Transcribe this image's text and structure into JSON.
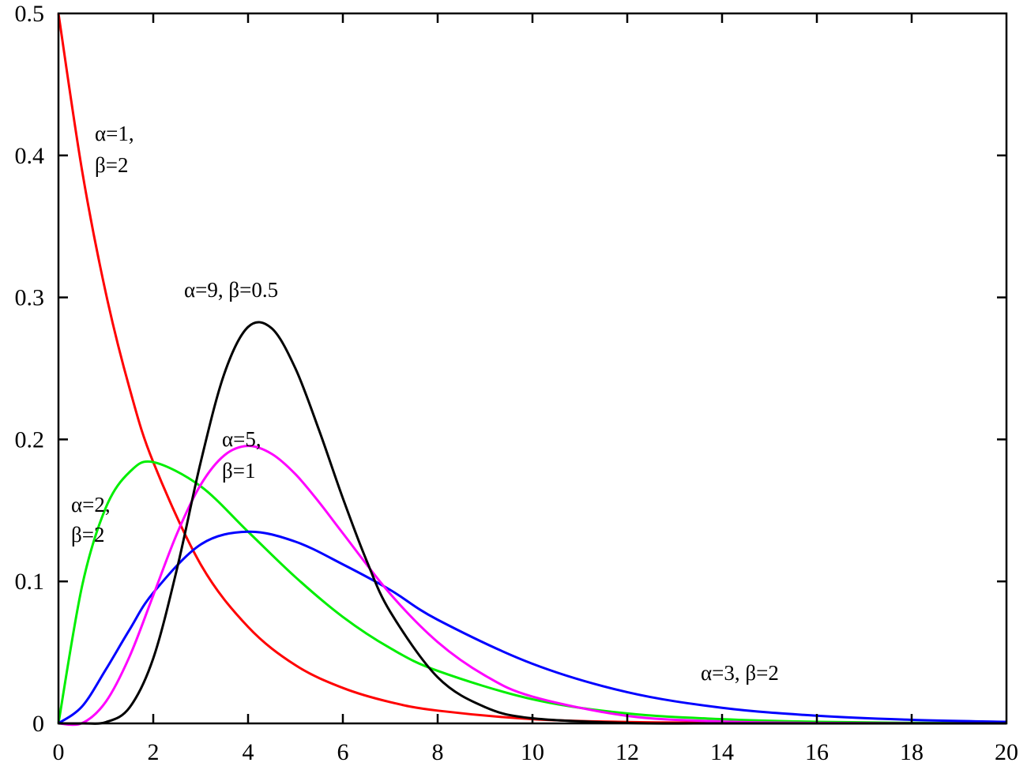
{
  "chart_data": {
    "type": "line",
    "title": "",
    "xlabel": "",
    "ylabel": "",
    "xlim": [
      0,
      20
    ],
    "ylim": [
      0,
      0.5
    ],
    "grid": false,
    "legend": "none",
    "x_ticks": [
      "0",
      "2",
      "4",
      "6",
      "8",
      "10",
      "12",
      "14",
      "16",
      "18",
      "20"
    ],
    "y_ticks": [
      "0",
      "0.1",
      "0.2",
      "0.3",
      "0.4",
      "0.5"
    ],
    "series": [
      {
        "line1": "α=1,",
        "line2": "β=2",
        "color": "#ff0000",
        "x": [
          0,
          0.5,
          1,
          1.5,
          2,
          3,
          4,
          5,
          6,
          7,
          8,
          10,
          12,
          14,
          16,
          18,
          20
        ],
        "y": [
          0.5,
          0.389,
          0.303,
          0.236,
          0.184,
          0.112,
          0.068,
          0.041,
          0.025,
          0.015,
          0.009,
          0.003,
          0.001,
          0.0005,
          0.0002,
          0.0001,
          0
        ]
      },
      {
        "line1": "α=2,",
        "line2": "β=2",
        "color": "#00ee00",
        "x": [
          0,
          0.5,
          1,
          1.5,
          2,
          3,
          4,
          5,
          6,
          7,
          8,
          10,
          12,
          14,
          16,
          18,
          20
        ],
        "y": [
          0,
          0.097,
          0.152,
          0.177,
          0.184,
          0.167,
          0.135,
          0.103,
          0.075,
          0.053,
          0.037,
          0.017,
          0.007,
          0.003,
          0.0011,
          0.0004,
          0.0002
        ]
      },
      {
        "line1": "α=3, β=2",
        "line2": "",
        "color": "#0000ff",
        "x": [
          0,
          0.5,
          1,
          1.5,
          2,
          3,
          4,
          5,
          6,
          7,
          8,
          10,
          12,
          14,
          16,
          18,
          20
        ],
        "y": [
          0,
          0.012,
          0.038,
          0.066,
          0.092,
          0.126,
          0.135,
          0.128,
          0.112,
          0.094,
          0.073,
          0.042,
          0.022,
          0.011,
          0.0054,
          0.0025,
          0.0011
        ]
      },
      {
        "line1": "α=5,",
        "line2": "β=1",
        "color": "#ff00ff",
        "x": [
          0,
          0.5,
          1,
          1.5,
          2,
          2.5,
          3,
          3.5,
          4,
          4.5,
          5,
          5.5,
          6,
          7,
          8,
          9,
          10,
          12,
          14,
          16,
          18,
          20
        ],
        "y": [
          0,
          0.0002,
          0.0153,
          0.0471,
          0.0902,
          0.1336,
          0.168,
          0.1888,
          0.1954,
          0.1898,
          0.1755,
          0.1557,
          0.1339,
          0.0912,
          0.0573,
          0.0337,
          0.0189,
          0.0053,
          0.0013,
          0.0003,
          0.0001,
          0
        ]
      },
      {
        "line1": "α=9, β=0.5",
        "line2": "",
        "color": "#000000",
        "x": [
          0,
          0.5,
          1,
          1.5,
          2,
          2.5,
          3,
          3.5,
          4,
          4.5,
          5,
          5.5,
          6,
          6.5,
          7,
          8,
          9,
          10,
          12,
          14,
          16,
          18,
          20
        ],
        "y": [
          0,
          0,
          0.0009,
          0.0112,
          0.0458,
          0.1088,
          0.1839,
          0.2464,
          0.2792,
          0.2782,
          0.2499,
          0.2063,
          0.1586,
          0.1147,
          0.0786,
          0.0325,
          0.0115,
          0.0036,
          0.0003,
          0,
          0,
          0,
          0
        ]
      }
    ]
  }
}
